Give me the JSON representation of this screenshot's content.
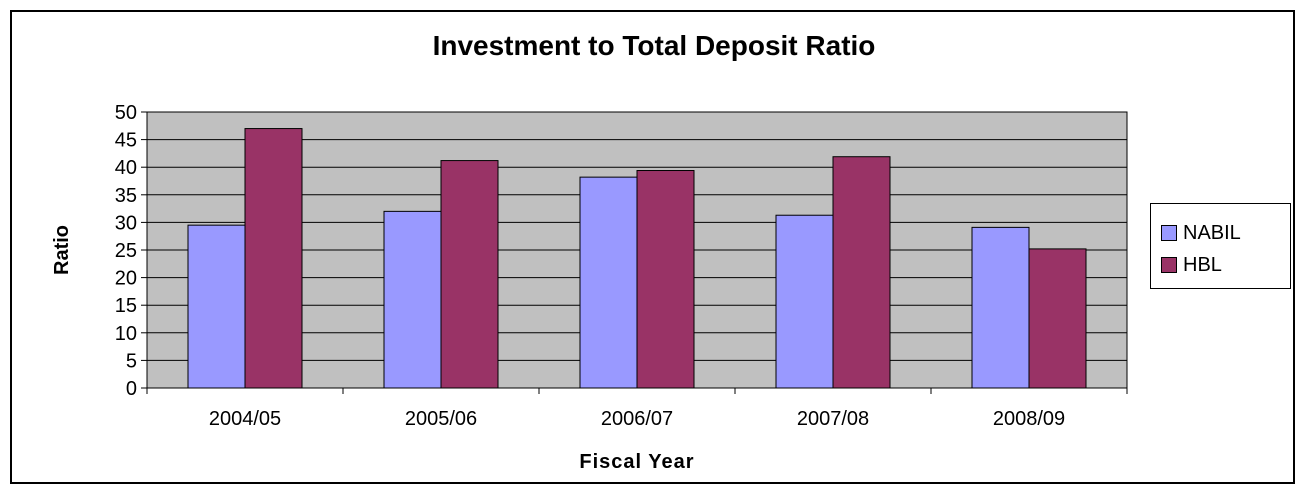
{
  "chart_data": {
    "type": "bar",
    "title": "Investment to Total Deposit Ratio",
    "xlabel": "Fiscal Year",
    "ylabel": "Ratio",
    "categories": [
      "2004/05",
      "2005/06",
      "2006/07",
      "2007/08",
      "2008/09"
    ],
    "series": [
      {
        "name": "NABIL",
        "values": [
          29.5,
          32.0,
          38.2,
          31.3,
          29.1
        ],
        "color": "#9999ff"
      },
      {
        "name": "HBL",
        "values": [
          47.0,
          41.2,
          39.4,
          41.9,
          25.2
        ],
        "color": "#993366"
      }
    ],
    "ylim": [
      0,
      50
    ],
    "yticks": [
      "0",
      "5",
      "10",
      "15",
      "20",
      "25",
      "30",
      "35",
      "40",
      "45",
      "50"
    ],
    "grid": true,
    "legend_position": "right",
    "plot_background": "#c0c0c0"
  }
}
